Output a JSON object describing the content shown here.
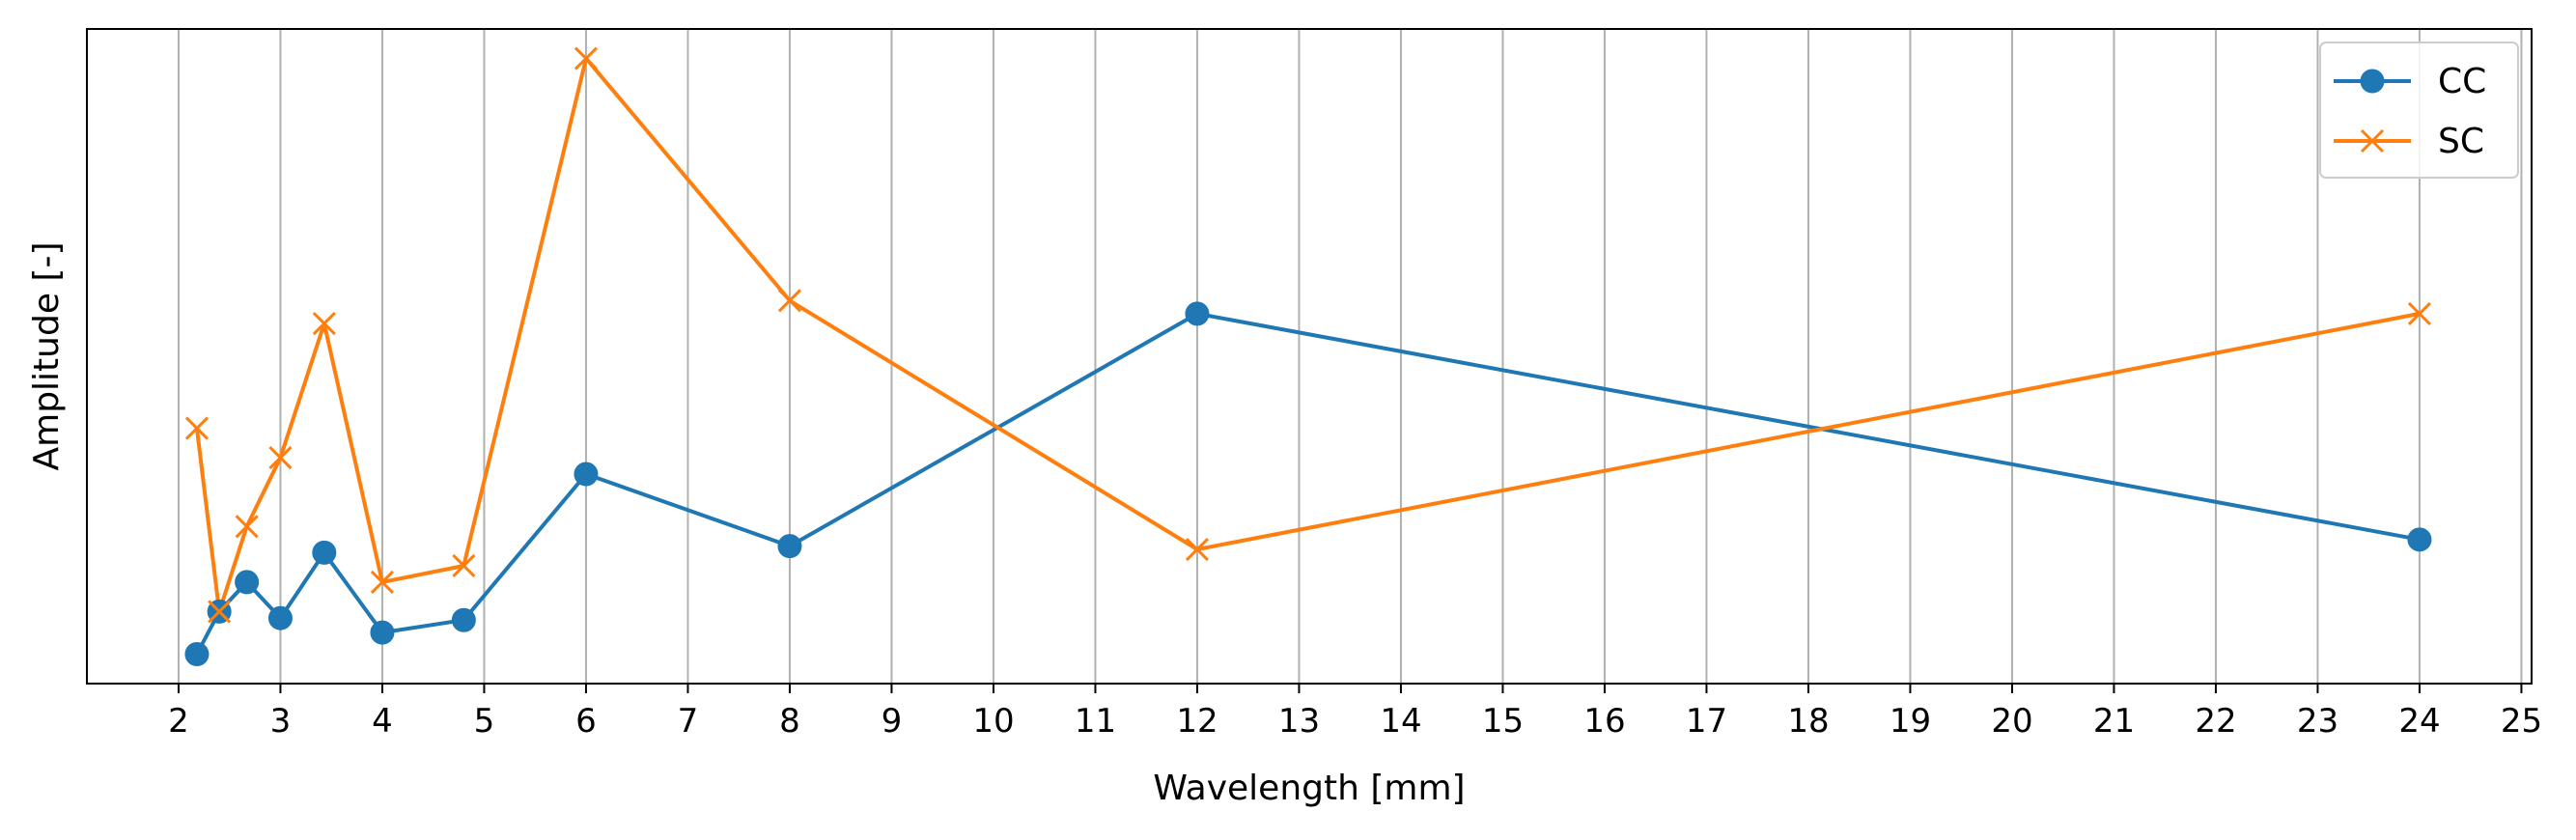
{
  "chart_data": {
    "type": "line",
    "title": "",
    "xlabel": "Wavelength [mm]",
    "ylabel": "Amplitude [-]",
    "xlim": [
      1.1,
      25.1
    ],
    "ylim": [
      0,
      1
    ],
    "x_ticks": [
      2,
      3,
      4,
      5,
      6,
      7,
      8,
      9,
      10,
      11,
      12,
      13,
      14,
      15,
      16,
      17,
      18,
      19,
      20,
      21,
      22,
      23,
      24,
      25
    ],
    "x_tick_labels": [
      "2",
      "3",
      "4",
      "5",
      "6",
      "7",
      "8",
      "9",
      "10",
      "11",
      "12",
      "13",
      "14",
      "15",
      "16",
      "17",
      "18",
      "19",
      "20",
      "21",
      "22",
      "23",
      "24",
      "25"
    ],
    "y_ticks_shown": false,
    "grid": "x-major",
    "legend_position": "top-right",
    "series": [
      {
        "name": "CC",
        "color": "#1f77b4",
        "marker": "circle",
        "x": [
          2.18,
          2.4,
          2.67,
          3.0,
          3.43,
          4.0,
          4.8,
          6.0,
          8.0,
          12.0,
          24.0
        ],
        "y": [
          0.045,
          0.11,
          0.155,
          0.1,
          0.2,
          0.078,
          0.097,
          0.32,
          0.21,
          0.565,
          0.22
        ]
      },
      {
        "name": "SC",
        "color": "#ff7f0e",
        "marker": "x",
        "x": [
          2.18,
          2.4,
          2.67,
          3.0,
          3.43,
          4.0,
          4.8,
          6.0,
          8.0,
          12.0,
          24.0
        ],
        "y": [
          0.39,
          0.11,
          0.24,
          0.345,
          0.55,
          0.155,
          0.18,
          0.955,
          0.585,
          0.205,
          0.565
        ]
      }
    ]
  }
}
